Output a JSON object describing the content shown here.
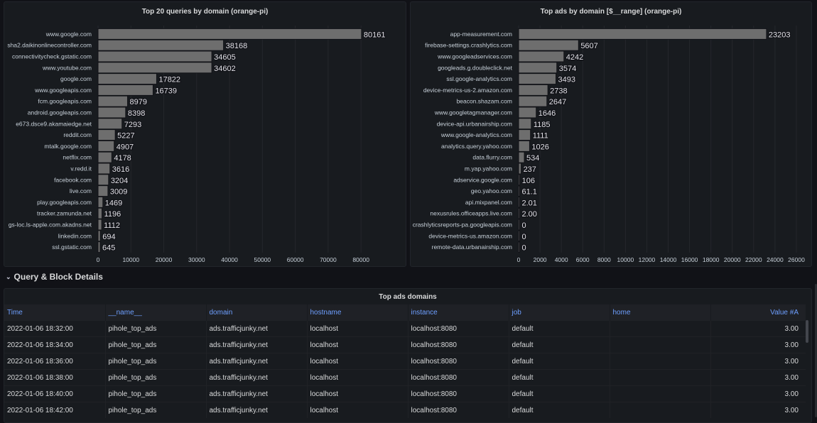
{
  "chart_data": [
    {
      "type": "bar",
      "orientation": "horizontal",
      "title": "Top 20 queries by domain (orange-pi)",
      "categories": [
        "www.google.com",
        "sha2.daikinonlinecontroller.com",
        "connectivitycheck.gstatic.com",
        "www.youtube.com",
        "google.com",
        "www.googleapis.com",
        "fcm.googleapis.com",
        "android.googleapis.com",
        "e673.dsce9.akamaiedge.net",
        "reddit.com",
        "mtalk.google.com",
        "netflix.com",
        "v.redd.it",
        "facebook.com",
        "live.com",
        "play.googleapis.com",
        "tracker.zamunda.net",
        "gs-loc.ls-apple.com.akadns.net",
        "linkedin.com",
        "ssl.gstatic.com"
      ],
      "values": [
        80161,
        38168,
        34605,
        34602,
        17822,
        16739,
        8979,
        8398,
        7293,
        5227,
        4907,
        4178,
        3616,
        3204,
        3009,
        1469,
        1196,
        1112,
        694,
        645
      ],
      "value_labels": [
        "80161",
        "38168",
        "34605",
        "34602",
        "17822",
        "16739",
        "8979",
        "8398",
        "7293",
        "5227",
        "4907",
        "4178",
        "3616",
        "3204",
        "3009",
        "1469",
        "1196",
        "1112",
        "694",
        "645"
      ],
      "xticks": [
        "0",
        "10000",
        "20000",
        "30000",
        "40000",
        "50000",
        "60000",
        "70000",
        "80000"
      ],
      "xlim": [
        0,
        92500
      ],
      "xlabel": "",
      "ylabel": "",
      "grid": true,
      "bar_color": "#6e6e6e"
    },
    {
      "type": "bar",
      "orientation": "horizontal",
      "title": "Top ads by domain [$__range] (orange-pi)",
      "categories": [
        "app-measurement.com",
        "firebase-settings.crashlytics.com",
        "www.googleadservices.com",
        "googleads.g.doubleclick.net",
        "ssl.google-analytics.com",
        "device-metrics-us-2.amazon.com",
        "beacon.shazam.com",
        "www.googletagmanager.com",
        "device-api.urbanairship.com",
        "www.google-analytics.com",
        "analytics.query.yahoo.com",
        "data.flurry.com",
        "m.yap.yahoo.com",
        "adservice.google.com",
        "geo.yahoo.com",
        "api.mixpanel.com",
        "nexusrules.officeapps.live.com",
        "crashlyticsreports-pa.googleapis.com",
        "device-metrics-us.amazon.com",
        "remote-data.urbanairship.com"
      ],
      "values": [
        23203,
        5607,
        4242,
        3574,
        3493,
        2738,
        2647,
        1646,
        1185,
        1111,
        1026,
        534,
        237,
        106,
        61.1,
        2.01,
        2.0,
        0,
        0,
        0
      ],
      "value_labels": [
        "23203",
        "5607",
        "4242",
        "3574",
        "3493",
        "2738",
        "2647",
        "1646",
        "1185",
        "1111",
        "1026",
        "534",
        "237",
        "106",
        "61.1",
        "2.01",
        "2.00",
        "0",
        "0",
        "0"
      ],
      "xticks": [
        "0",
        "2000",
        "4000",
        "6000",
        "8000",
        "10000",
        "12000",
        "14000",
        "16000",
        "18000",
        "20000",
        "22000",
        "24000",
        "26000"
      ],
      "xlim": [
        0,
        26600
      ],
      "xlabel": "",
      "ylabel": "",
      "grid": true,
      "bar_color": "#6e6e6e"
    }
  ],
  "row": {
    "title": "Query & Block Details",
    "collapse_icon": "chevron-down-icon"
  },
  "table": {
    "title": "Top ads domains",
    "columns": [
      "Time",
      "__name__",
      "domain",
      "hostname",
      "instance",
      "job",
      "home",
      "Value #A"
    ],
    "rows": [
      [
        "2022-01-06 18:32:00",
        "pihole_top_ads",
        "ads.trafficjunky.net",
        "localhost",
        "localhost:8080",
        "default",
        "",
        "3.00"
      ],
      [
        "2022-01-06 18:34:00",
        "pihole_top_ads",
        "ads.trafficjunky.net",
        "localhost",
        "localhost:8080",
        "default",
        "",
        "3.00"
      ],
      [
        "2022-01-06 18:36:00",
        "pihole_top_ads",
        "ads.trafficjunky.net",
        "localhost",
        "localhost:8080",
        "default",
        "",
        "3.00"
      ],
      [
        "2022-01-06 18:38:00",
        "pihole_top_ads",
        "ads.trafficjunky.net",
        "localhost",
        "localhost:8080",
        "default",
        "",
        "3.00"
      ],
      [
        "2022-01-06 18:40:00",
        "pihole_top_ads",
        "ads.trafficjunky.net",
        "localhost",
        "localhost:8080",
        "default",
        "",
        "3.00"
      ],
      [
        "2022-01-06 18:42:00",
        "pihole_top_ads",
        "ads.trafficjunky.net",
        "localhost",
        "localhost:8080",
        "default",
        "",
        "3.00"
      ]
    ]
  },
  "colors": {
    "background": "#111217",
    "panel": "#181b1f",
    "header_text": "#6e9fff",
    "bar": "#6e6e6e"
  }
}
